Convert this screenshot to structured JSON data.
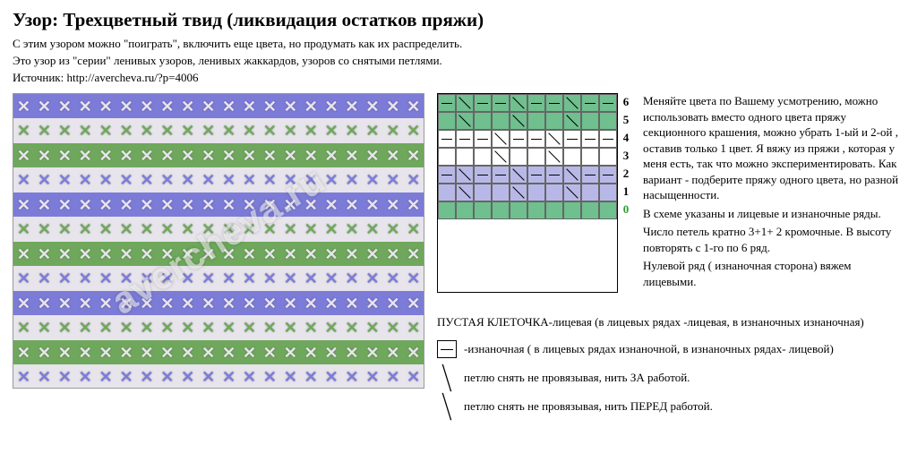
{
  "header": {
    "title": "Узор: Трехцветный твид (ликвидация остатков пряжи)",
    "intro1": "С этим узором можно \"поиграть\", включить еще цвета, но продумать как их распределить.",
    "intro2": "Это узор из \"серии\" ленивых узоров, ленивых жаккардов, узоров со снятыми петлями.",
    "source": "Источник: http://avercheva.ru/?p=4006"
  },
  "photo": {
    "watermark": "avercheva.ru",
    "yarn_colors": {
      "purple": "#7c7cd8",
      "green": "#6fa85c",
      "white": "#e8e4ec"
    },
    "stripe_count": 12,
    "stitches_per_row": 20,
    "color_sequence": [
      "purple",
      "white",
      "green",
      "white"
    ]
  },
  "chart": {
    "row_labels": [
      "6",
      "5",
      "4",
      "3",
      "2",
      "1",
      "0"
    ],
    "cols": 10,
    "row_colors": {
      "6": "#6fbf8f",
      "5": "#6fbf8f",
      "4": "#ffffff",
      "3": "#ffffff",
      "2": "#b8b8e8",
      "1": "#b8b8e8",
      "0": "#6fbf8f"
    },
    "zero_row_color": "#2e9c2e",
    "cells": {
      "6": [
        "dash",
        "bslash",
        "dash",
        "dash",
        "bslash",
        "dash",
        "dash",
        "bslash",
        "dash",
        "dash"
      ],
      "5": [
        "",
        "bslash",
        "",
        "",
        "bslash",
        "",
        "",
        "bslash",
        "",
        ""
      ],
      "4": [
        "dash",
        "dash",
        "dash",
        "bslash",
        "dash",
        "dash",
        "bslash",
        "dash",
        "dash",
        "dash"
      ],
      "3": [
        "",
        "",
        "",
        "bslash",
        "",
        "",
        "bslash",
        "",
        "",
        ""
      ],
      "2": [
        "dash",
        "bslash",
        "dash",
        "dash",
        "bslash",
        "dash",
        "dash",
        "bslash",
        "dash",
        "dash"
      ],
      "1": [
        "",
        "bslash",
        "",
        "",
        "bslash",
        "",
        "",
        "bslash",
        "",
        ""
      ],
      "0": [
        "",
        "",
        "",
        "",
        "",
        "",
        "",
        "",
        "",
        ""
      ]
    }
  },
  "instructions": {
    "p1": "Меняйте цвета по Вашему усмотрению, можно использовать вместо одного цвета пряжу секционного крашения, можно убрать 1-ый и 2-ой , оставив только 1 цвет. Я вяжу из пряжи , которая у меня есть, так что можно экспериментировать. Как вариант - подберите пряжу одного цвета, но разной насыщенности.",
    "p2": "В схеме указаны и лицевые и изнаночные ряды.",
    "p3": "Число петель кратно 3+1+ 2 кромочные. В высоту повторять с 1-го по 6 ряд.",
    "p4": "Нулевой ряд ( изнаночная сторона) вяжем лицевыми."
  },
  "legend": {
    "l1": "ПУСТАЯ КЛЕТОЧКА-лицевая (в лицевых рядах -лицевая, в изнаночных изнаночная)",
    "l2": "-изнаночная ( в лицевых рядах изнаночной, в изнаночных рядах- лицевой)",
    "l3": "петлю снять не провязывая, нить ЗА работой.",
    "l4": "петлю снять не провязывая, нить ПЕРЕД работой."
  }
}
